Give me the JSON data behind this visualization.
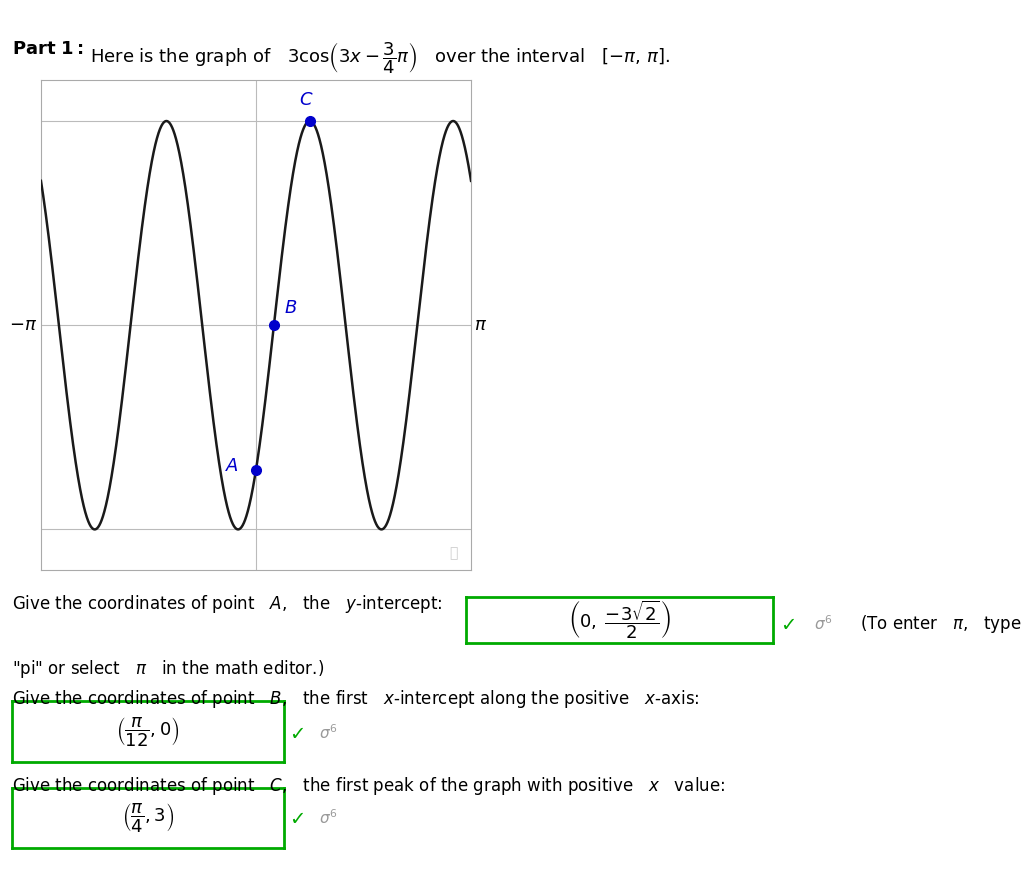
{
  "xlim": [
    -3.14159265358979,
    3.14159265358979
  ],
  "ylim": [
    -3.6,
    3.6
  ],
  "amplitude": 3,
  "phase": 2.356194490192345,
  "frequency": 3,
  "point_A": [
    0,
    -2.1213203435596424
  ],
  "point_B": [
    0.2617993877991494,
    0
  ],
  "point_C": [
    0.7853981633974483,
    3
  ],
  "point_color": "#0000cc",
  "curve_color": "#1a1a1a",
  "grid_color": "#bbbbbb",
  "bg_color": "#ffffff",
  "box_color": "#00aa00",
  "check_color": "#00aa00",
  "sigma_color": "#999999"
}
